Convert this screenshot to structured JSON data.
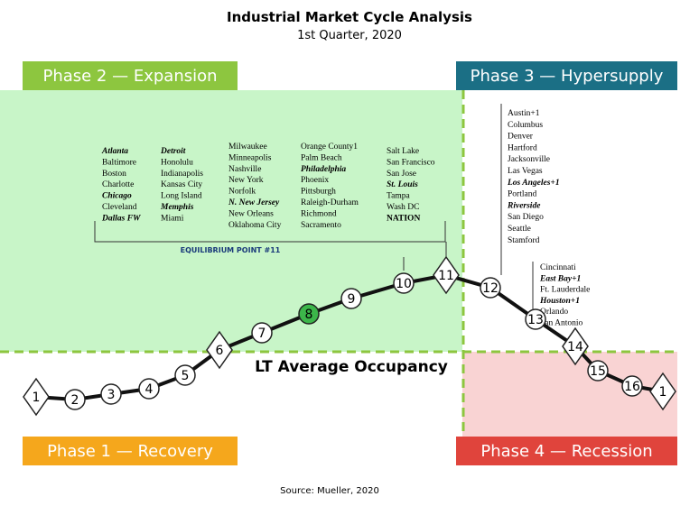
{
  "title": "Industrial Market Cycle Analysis",
  "subtitle": "1st Quarter, 2020",
  "phases": [
    {
      "label": "Phase 1 — Recovery",
      "color": "#f5a71c"
    },
    {
      "label": "Phase 2 — Expansion",
      "color": "#8dc63f"
    },
    {
      "label": "Phase 3 — Hypersupply",
      "color": "#1b6f85"
    },
    {
      "label": "Phase 4 — Recession",
      "color": "#e0443c"
    }
  ],
  "columns": [
    [
      {
        "name": "Atlanta",
        "bold": true
      },
      {
        "name": "Baltimore",
        "bold": false
      },
      {
        "name": "Boston",
        "bold": false
      },
      {
        "name": "Charlotte",
        "bold": false
      },
      {
        "name": "Chicago",
        "bold": true
      },
      {
        "name": "Cleveland",
        "bold": false
      },
      {
        "name": "Dallas FW",
        "bold": true
      }
    ],
    [
      {
        "name": "Detroit",
        "bold": true
      },
      {
        "name": "Honolulu",
        "bold": false
      },
      {
        "name": "Indianapolis",
        "bold": false
      },
      {
        "name": "Kansas City",
        "bold": false
      },
      {
        "name": "Long Island",
        "bold": false
      },
      {
        "name": "Memphis",
        "bold": true
      },
      {
        "name": "Miami",
        "bold": false
      }
    ],
    [
      {
        "name": "Milwaukee",
        "bold": false
      },
      {
        "name": "Minneapolis",
        "bold": false
      },
      {
        "name": "Nashville",
        "bold": false
      },
      {
        "name": "New York",
        "bold": false
      },
      {
        "name": "Norfolk",
        "bold": false
      },
      {
        "name": "N. New Jersey",
        "bold": true
      },
      {
        "name": "New Orleans",
        "bold": false
      },
      {
        "name": "Oklahoma City",
        "bold": false
      }
    ],
    [
      {
        "name": "Orange County1",
        "bold": false
      },
      {
        "name": "Palm Beach",
        "bold": false
      },
      {
        "name": "Philadelphia",
        "bold": true
      },
      {
        "name": "Phoenix",
        "bold": false
      },
      {
        "name": "Pittsburgh",
        "bold": false
      },
      {
        "name": "Raleigh-Durham",
        "bold": false
      },
      {
        "name": "Richmond",
        "bold": false
      },
      {
        "name": "Sacramento",
        "bold": false
      }
    ],
    [
      {
        "name": "Salt Lake",
        "bold": false
      },
      {
        "name": "San Francisco",
        "bold": false
      },
      {
        "name": "San Jose",
        "bold": false
      },
      {
        "name": "St. Louis",
        "bold": true
      },
      {
        "name": "Tampa",
        "bold": false
      },
      {
        "name": "Wash DC",
        "bold": false
      },
      {
        "name": "NATION",
        "bold": true
      }
    ],
    [
      {
        "name": "Austin+1",
        "bold": false
      },
      {
        "name": "Columbus",
        "bold": false
      },
      {
        "name": "Denver",
        "bold": false
      },
      {
        "name": "Hartford",
        "bold": false
      },
      {
        "name": "Jacksonville",
        "bold": false
      },
      {
        "name": "Las Vegas",
        "bold": false
      },
      {
        "name": "Los Angeles+1",
        "bold": true
      },
      {
        "name": "Portland",
        "bold": false
      },
      {
        "name": "Riverside",
        "bold": true
      },
      {
        "name": "San Diego",
        "bold": false
      },
      {
        "name": "Seattle",
        "bold": false
      },
      {
        "name": "Stamford",
        "bold": false
      }
    ],
    [
      {
        "name": "Cincinnati",
        "bold": false
      },
      {
        "name": "East Bay+1",
        "bold": true
      },
      {
        "name": "Ft. Lauderdale",
        "bold": false
      },
      {
        "name": "Houston+1",
        "bold": true
      },
      {
        "name": "Orlando",
        "bold": false
      },
      {
        "name": "San Antonio",
        "bold": false
      }
    ]
  ],
  "equilibrium_label": "EQUILIBRIUM POINT #11",
  "occupancy_label": "LT Average Occupancy",
  "points": [
    {
      "label": "1",
      "shape": "diamond"
    },
    {
      "label": "2",
      "shape": "circle"
    },
    {
      "label": "3",
      "shape": "circle"
    },
    {
      "label": "4",
      "shape": "circle"
    },
    {
      "label": "5",
      "shape": "circle"
    },
    {
      "label": "6",
      "shape": "diamond"
    },
    {
      "label": "7",
      "shape": "circle"
    },
    {
      "label": "8",
      "shape": "circle",
      "highlight": true
    },
    {
      "label": "9",
      "shape": "circle"
    },
    {
      "label": "10",
      "shape": "circle"
    },
    {
      "label": "11",
      "shape": "diamond"
    },
    {
      "label": "12",
      "shape": "circle"
    },
    {
      "label": "13",
      "shape": "circle"
    },
    {
      "label": "14",
      "shape": "diamond"
    },
    {
      "label": "15",
      "shape": "circle"
    },
    {
      "label": "16",
      "shape": "circle"
    },
    {
      "label": "1",
      "shape": "diamond"
    }
  ],
  "source": "Source: Mueller, 2020"
}
